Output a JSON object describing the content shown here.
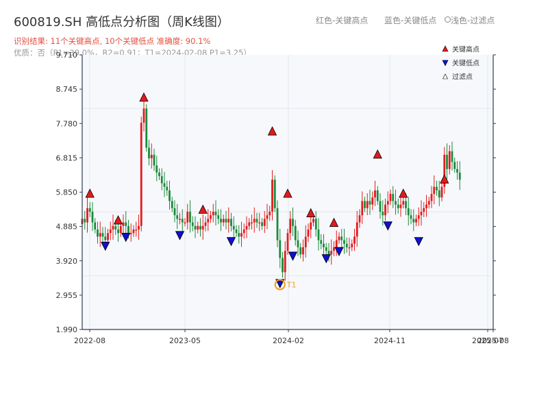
{
  "header": {
    "title": "600819.SH 高低点分析图（周K线图）",
    "result_line": "识别结果: 11个关键高点, 10个关键低点  准确度: 90.1%",
    "quality_line": "优质：否（P1=39.0%，R2=0.91；T1=2024-02-08 P1=3.25）",
    "legend_red": "红色-关键高点",
    "legend_blue": "蓝色-关键低点",
    "legend_gray": "浅色-过滤点"
  },
  "colors": {
    "up": "#e41a1c",
    "down": "#1a8a3a",
    "high_marker": "#e41a1c",
    "low_marker": "#1010d0",
    "t1": "#f39c12",
    "axis": "#2c3e50",
    "plot_bg": "#f6f8fb"
  },
  "chart_data": {
    "type": "candlestick",
    "title": "600819.SH 高低点分析图（周K线图）",
    "x_tick_labels": [
      "2022-08",
      "2023-05",
      "2024-02",
      "2024-11",
      "2025-07",
      "2025-08"
    ],
    "y_ticks": [
      1.99,
      2.955,
      3.92,
      4.885,
      5.85,
      6.815,
      7.78,
      8.745,
      9.71
    ],
    "y_tick_labels": [
      "1.990",
      "2.955",
      "3.920",
      "4.885",
      "5.850",
      "6.815",
      "7.780",
      "8.745",
      "9.710"
    ],
    "ylim": [
      1.99,
      9.71
    ],
    "x_range_weeks": [
      0,
      160
    ],
    "grid": true,
    "weekly_close_path": [
      [
        0,
        5.1
      ],
      [
        1,
        5.0
      ],
      [
        2,
        5.4
      ],
      [
        3,
        5.3
      ],
      [
        4,
        5.0
      ],
      [
        5,
        4.8
      ],
      [
        6,
        4.6
      ],
      [
        7,
        4.7
      ],
      [
        8,
        4.6
      ],
      [
        9,
        4.5
      ],
      [
        10,
        4.7
      ],
      [
        11,
        4.8
      ],
      [
        12,
        4.9
      ],
      [
        13,
        4.8
      ],
      [
        14,
        4.7
      ],
      [
        15,
        4.9
      ],
      [
        16,
        5.0
      ],
      [
        17,
        4.9
      ],
      [
        18,
        4.7
      ],
      [
        19,
        4.7
      ],
      [
        20,
        4.8
      ],
      [
        21,
        4.8
      ],
      [
        22,
        4.9
      ],
      [
        23,
        7.8
      ],
      [
        24,
        8.2
      ],
      [
        25,
        7.1
      ],
      [
        26,
        6.8
      ],
      [
        27,
        6.9
      ],
      [
        28,
        6.6
      ],
      [
        29,
        6.4
      ],
      [
        30,
        6.3
      ],
      [
        31,
        6.1
      ],
      [
        32,
        6.0
      ],
      [
        33,
        5.9
      ],
      [
        34,
        5.6
      ],
      [
        35,
        5.4
      ],
      [
        36,
        5.2
      ],
      [
        37,
        5.1
      ],
      [
        38,
        5.1
      ],
      [
        39,
        5.0
      ],
      [
        40,
        5.0
      ],
      [
        41,
        5.3
      ],
      [
        42,
        5.0
      ],
      [
        43,
        4.9
      ],
      [
        44,
        4.8
      ],
      [
        45,
        4.9
      ],
      [
        46,
        4.8
      ],
      [
        47,
        4.9
      ],
      [
        48,
        5.0
      ],
      [
        49,
        5.1
      ],
      [
        50,
        5.2
      ],
      [
        51,
        5.3
      ],
      [
        52,
        5.2
      ],
      [
        53,
        5.1
      ],
      [
        54,
        5.0
      ],
      [
        55,
        5.1
      ],
      [
        56,
        5.0
      ],
      [
        57,
        5.1
      ],
      [
        58,
        4.9
      ],
      [
        59,
        4.8
      ],
      [
        60,
        4.7
      ],
      [
        61,
        4.6
      ],
      [
        62,
        4.7
      ],
      [
        63,
        4.8
      ],
      [
        64,
        4.9
      ],
      [
        65,
        5.0
      ],
      [
        66,
        5.0
      ],
      [
        67,
        5.1
      ],
      [
        68,
        5.0
      ],
      [
        69,
        5.0
      ],
      [
        70,
        4.9
      ],
      [
        71,
        5.1
      ],
      [
        72,
        5.2
      ],
      [
        73,
        5.3
      ],
      [
        74,
        6.2
      ],
      [
        75,
        5.4
      ],
      [
        76,
        4.5
      ],
      [
        77,
        4.0
      ],
      [
        78,
        3.6
      ],
      [
        79,
        4.2
      ],
      [
        80,
        4.7
      ],
      [
        81,
        5.1
      ],
      [
        82,
        4.9
      ],
      [
        83,
        4.5
      ],
      [
        84,
        4.3
      ],
      [
        85,
        4.1
      ],
      [
        86,
        4.3
      ],
      [
        87,
        4.6
      ],
      [
        88,
        4.8
      ],
      [
        89,
        5.0
      ],
      [
        90,
        5.1
      ],
      [
        91,
        4.8
      ],
      [
        92,
        4.5
      ],
      [
        93,
        4.4
      ],
      [
        94,
        4.3
      ],
      [
        95,
        4.2
      ],
      [
        96,
        4.1
      ],
      [
        97,
        4.2
      ],
      [
        98,
        4.3
      ],
      [
        99,
        4.5
      ],
      [
        100,
        4.6
      ],
      [
        101,
        4.5
      ],
      [
        102,
        4.4
      ],
      [
        103,
        4.3
      ],
      [
        104,
        4.3
      ],
      [
        105,
        4.4
      ],
      [
        106,
        4.6
      ],
      [
        107,
        5.0
      ],
      [
        108,
        5.2
      ],
      [
        109,
        5.6
      ],
      [
        110,
        5.4
      ],
      [
        111,
        5.6
      ],
      [
        112,
        5.5
      ],
      [
        113,
        5.7
      ],
      [
        114,
        5.9
      ],
      [
        115,
        5.6
      ],
      [
        116,
        5.3
      ],
      [
        117,
        5.2
      ],
      [
        118,
        5.5
      ],
      [
        119,
        5.6
      ],
      [
        120,
        5.8
      ],
      [
        121,
        5.6
      ],
      [
        122,
        5.5
      ],
      [
        123,
        5.4
      ],
      [
        124,
        5.5
      ],
      [
        125,
        5.6
      ],
      [
        126,
        5.4
      ],
      [
        127,
        5.2
      ],
      [
        128,
        5.1
      ],
      [
        129,
        5.0
      ],
      [
        130,
        5.1
      ],
      [
        131,
        5.2
      ],
      [
        132,
        5.3
      ],
      [
        133,
        5.4
      ],
      [
        134,
        5.5
      ],
      [
        135,
        5.6
      ],
      [
        136,
        5.8
      ],
      [
        137,
        6.0
      ],
      [
        138,
        5.9
      ],
      [
        139,
        5.7
      ],
      [
        140,
        6.0
      ],
      [
        141,
        6.9
      ],
      [
        142,
        6.5
      ],
      [
        143,
        7.0
      ],
      [
        144,
        6.7
      ],
      [
        145,
        6.5
      ],
      [
        146,
        6.4
      ],
      [
        147,
        6.2
      ]
    ],
    "key_highs": [
      {
        "week": 3,
        "price": 5.8
      },
      {
        "week": 14,
        "price": 5.05
      },
      {
        "week": 24,
        "price": 8.5
      },
      {
        "week": 47,
        "price": 5.35
      },
      {
        "week": 74,
        "price": 7.55
      },
      {
        "week": 80,
        "price": 5.8
      },
      {
        "week": 89,
        "price": 5.25
      },
      {
        "week": 98,
        "price": 4.98
      },
      {
        "week": 115,
        "price": 6.9
      },
      {
        "week": 125,
        "price": 5.8
      },
      {
        "week": 141,
        "price": 6.2
      }
    ],
    "key_lows": [
      {
        "week": 9,
        "price": 4.35
      },
      {
        "week": 17,
        "price": 4.6
      },
      {
        "week": 38,
        "price": 4.65
      },
      {
        "week": 58,
        "price": 4.48
      },
      {
        "week": 77,
        "price": 3.3
      },
      {
        "week": 82,
        "price": 4.07
      },
      {
        "week": 95,
        "price": 4.0
      },
      {
        "week": 100,
        "price": 4.2
      },
      {
        "week": 119,
        "price": 4.92
      },
      {
        "week": 131,
        "price": 4.48
      }
    ],
    "t1": {
      "week": 77,
      "price": 3.25,
      "label": "T1"
    },
    "legend": [
      {
        "key": "high",
        "label": "关键高点"
      },
      {
        "key": "low",
        "label": "关键低点"
      },
      {
        "key": "filtered",
        "label": "过滤点"
      }
    ],
    "legend_position": "top-right"
  }
}
